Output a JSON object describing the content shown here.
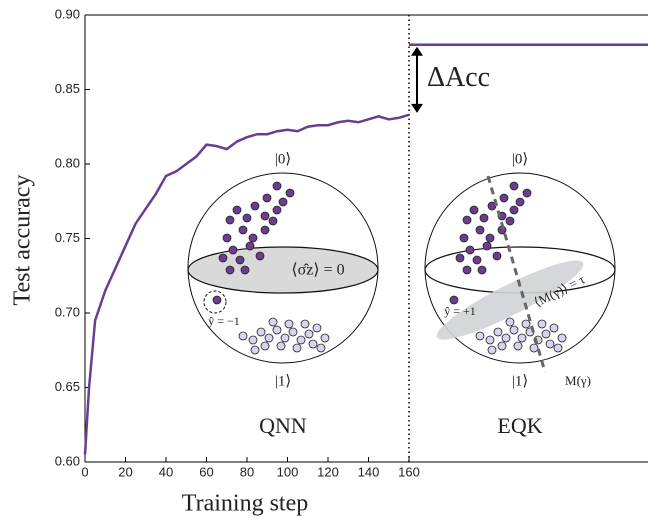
{
  "chart_data": {
    "type": "line",
    "xlabel": "Training step",
    "ylabel": "Test accuracy",
    "xlim": [
      0,
      278
    ],
    "ylim": [
      0.6,
      0.9
    ],
    "xticks": [
      0,
      20,
      40,
      60,
      80,
      100,
      120,
      140,
      160
    ],
    "yticks": [
      {
        "value": 0.6,
        "label": "0.60"
      },
      0.65,
      {
        "value": 0.7,
        "label": "0.70"
      },
      0.75,
      {
        "value": 0.8,
        "label": "0.80"
      },
      0.85,
      {
        "value": 0.9,
        "label": "0.90"
      }
    ],
    "series": [
      {
        "color": "#6b3d8e",
        "x": [
          0,
          2,
          5,
          10,
          15,
          20,
          25,
          30,
          35,
          40,
          45,
          50,
          55,
          60,
          65,
          70,
          75,
          80,
          85,
          90,
          95,
          100,
          105,
          110,
          115,
          120,
          125,
          130,
          135,
          140,
          145,
          150,
          155,
          160
        ],
        "values": [
          0.605,
          0.65,
          0.695,
          0.715,
          0.73,
          0.745,
          0.76,
          0.77,
          0.78,
          0.792,
          0.795,
          0.8,
          0.805,
          0.813,
          0.812,
          0.81,
          0.815,
          0.818,
          0.82,
          0.82,
          0.822,
          0.823,
          0.822,
          0.825,
          0.826,
          0.826,
          0.828,
          0.829,
          0.828,
          0.83,
          0.832,
          0.83,
          0.831,
          0.833
        ]
      },
      {
        "color": "#6b3d8e",
        "x": [
          160,
          278
        ],
        "values": [
          0.88,
          0.88
        ]
      }
    ],
    "vline_x": 160,
    "delta_label": "ΔAcc",
    "insets": {
      "qnn": {
        "label": "QNN",
        "ket0": "|0⟩",
        "ket1": "|1⟩",
        "observable": "⟨σ̂z⟩ = 0",
        "yhat": "ŷ = −1"
      },
      "eqk": {
        "label": "EQK",
        "ket0": "|0⟩",
        "ket1": "|1⟩",
        "observable": "⟨M(γ)⟩ = τ",
        "yhat": "ŷ = +1",
        "measurement": "M(γ)"
      }
    }
  }
}
